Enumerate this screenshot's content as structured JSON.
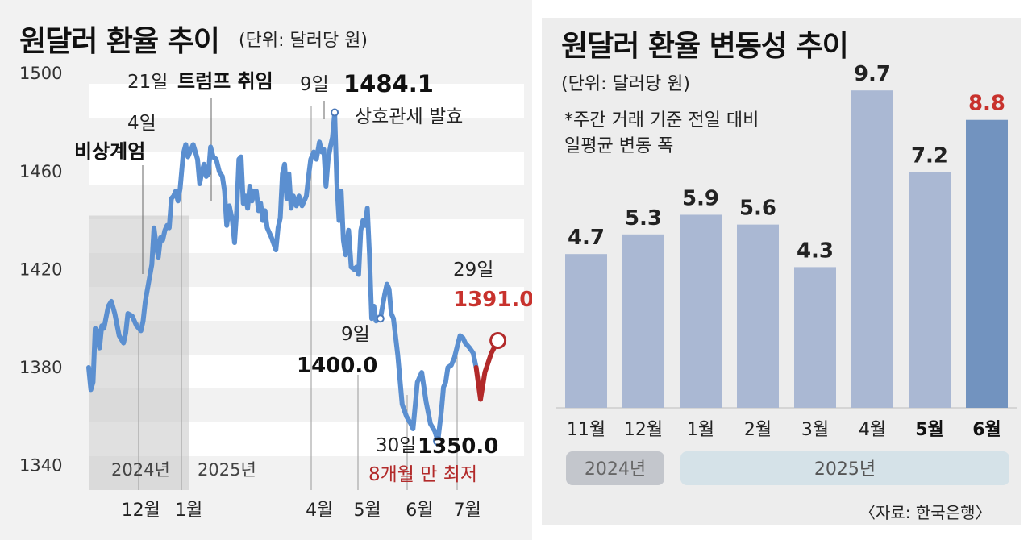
{
  "left": {
    "title": "원달러 환율 추이",
    "unit": "(단위: 달러당 원)"
  },
  "right": {
    "title": "원달러 환율 변동성 추이",
    "unit": "(단위: 달러당 원)",
    "note_line1": "*주간 거래 기준 전일 대비",
    "note_line2": " 일평균 변동 폭",
    "source": "〈자료: 한국은행〉"
  },
  "colors": {
    "line": "#5b8fd0",
    "line_recent": "#b22a2a",
    "accent_red": "#c8322d",
    "bar": "#aab8d3",
    "bar_highlight": "#7293bf",
    "band_dark": "#c3c6cc",
    "band_light": "#d5e2e8"
  },
  "chart_data": [
    {
      "type": "line",
      "title": "원달러 환율 추이",
      "unit": "(단위: 달러당 원)",
      "ylim": [
        1330,
        1505
      ],
      "yticks": [
        1340,
        1380,
        1420,
        1460,
        1500
      ],
      "ytick_labels": [
        "1340",
        "1380",
        "1420",
        "1460",
        "1500"
      ],
      "x_range": [
        0,
        100
      ],
      "month_ticks": [
        {
          "x": 12,
          "label": "12월"
        },
        {
          "x": 23,
          "label": "1월"
        },
        {
          "x": 53,
          "label": "4월"
        },
        {
          "x": 64,
          "label": "5월"
        },
        {
          "x": 76,
          "label": "6월"
        },
        {
          "x": 87,
          "label": "7월"
        }
      ],
      "year_labels": [
        {
          "x": 12,
          "label": "2024년"
        },
        {
          "x": 34,
          "label": "2025년"
        }
      ],
      "shaded_period": [
        0,
        23
      ],
      "series": [
        {
          "name": "원달러 환율",
          "points": [
            [
              0,
              1380
            ],
            [
              0.5,
              1371
            ],
            [
              1,
              1374
            ],
            [
              1.5,
              1396
            ],
            [
              2,
              1395
            ],
            [
              2.5,
              1388
            ],
            [
              3,
              1397
            ],
            [
              3.5,
              1396
            ],
            [
              4.5,
              1405
            ],
            [
              5.2,
              1407
            ],
            [
              6,
              1402
            ],
            [
              7,
              1393
            ],
            [
              8,
              1390
            ],
            [
              8.5,
              1394
            ],
            [
              9,
              1402
            ],
            [
              10,
              1401
            ],
            [
              11,
              1397
            ],
            [
              12,
              1395
            ],
            [
              12.5,
              1399
            ],
            [
              13,
              1407
            ],
            [
              14,
              1417
            ],
            [
              14.5,
              1422
            ],
            [
              15,
              1437
            ],
            [
              15.5,
              1430
            ],
            [
              16,
              1425
            ],
            [
              16.5,
              1433
            ],
            [
              17,
              1432
            ],
            [
              17.5,
              1436
            ],
            [
              18,
              1438
            ],
            [
              18.5,
              1437
            ],
            [
              19,
              1449
            ],
            [
              19.5,
              1450
            ],
            [
              20,
              1452
            ],
            [
              20.5,
              1448
            ],
            [
              21,
              1453
            ],
            [
              21.7,
              1467
            ],
            [
              22.3,
              1471
            ],
            [
              22.8,
              1466
            ],
            [
              23.5,
              1469
            ],
            [
              24,
              1471
            ],
            [
              25,
              1465
            ],
            [
              25.5,
              1455
            ],
            [
              26,
              1460
            ],
            [
              26.5,
              1463
            ],
            [
              27,
              1458
            ],
            [
              27.5,
              1459
            ],
            [
              28,
              1470
            ],
            [
              28.6,
              1466
            ],
            [
              29.3,
              1465
            ],
            [
              30,
              1460
            ],
            [
              30.7,
              1458
            ],
            [
              31.2,
              1452
            ],
            [
              31.7,
              1438
            ],
            [
              32.3,
              1446
            ],
            [
              33,
              1440
            ],
            [
              33.5,
              1431
            ],
            [
              34,
              1444
            ],
            [
              34.5,
              1465
            ],
            [
              35,
              1466
            ],
            [
              35.5,
              1447
            ],
            [
              36,
              1450
            ],
            [
              36.5,
              1445
            ],
            [
              37,
              1454
            ],
            [
              37.5,
              1448
            ],
            [
              38,
              1452
            ],
            [
              38.5,
              1452
            ],
            [
              39,
              1444
            ],
            [
              39.5,
              1447
            ],
            [
              40,
              1440
            ],
            [
              40.5,
              1444
            ],
            [
              41,
              1437
            ],
            [
              42,
              1433
            ],
            [
              43,
              1428
            ],
            [
              43.5,
              1437
            ],
            [
              44,
              1441
            ],
            [
              44.5,
              1459
            ],
            [
              45,
              1463
            ],
            [
              45.5,
              1449
            ],
            [
              46,
              1459
            ],
            [
              46.5,
              1445
            ],
            [
              47,
              1450
            ],
            [
              47.7,
              1446
            ],
            [
              48.3,
              1450
            ],
            [
              49,
              1446
            ],
            [
              49.5,
              1448
            ],
            [
              50,
              1450
            ],
            [
              50.5,
              1458
            ],
            [
              51,
              1465
            ],
            [
              51.7,
              1468
            ],
            [
              52.3,
              1465
            ],
            [
              53,
              1472
            ],
            [
              53.5,
              1468
            ],
            [
              54,
              1469
            ],
            [
              54.5,
              1454
            ],
            [
              55,
              1465
            ],
            [
              55.5,
              1470
            ],
            [
              56,
              1474
            ],
            [
              56.5,
              1484.1
            ],
            [
              57,
              1455
            ],
            [
              57.5,
              1440
            ],
            [
              58,
              1452
            ],
            [
              58.5,
              1432
            ],
            [
              59,
              1426
            ],
            [
              59.7,
              1436
            ],
            [
              60.3,
              1421
            ],
            [
              61,
              1420
            ],
            [
              61.5,
              1421
            ],
            [
              62,
              1418
            ],
            [
              62.5,
              1436
            ],
            [
              63,
              1440
            ],
            [
              63.5,
              1438
            ],
            [
              64,
              1445
            ],
            [
              64.5,
              1426
            ],
            [
              65,
              1400
            ],
            [
              65.5,
              1405
            ],
            [
              66,
              1399
            ],
            [
              67,
              1400
            ],
            [
              68,
              1410
            ],
            [
              68.5,
              1414
            ],
            [
              69,
              1412
            ],
            [
              69.5,
              1402
            ],
            [
              70,
              1400
            ],
            [
              71,
              1385
            ],
            [
              72,
              1365
            ],
            [
              73,
              1360
            ],
            [
              74,
              1357
            ],
            [
              74.5,
              1355
            ],
            [
              75.5,
              1374
            ],
            [
              76.5,
              1378
            ],
            [
              77.5,
              1366
            ],
            [
              78.5,
              1357
            ],
            [
              79.5,
              1354
            ],
            [
              80.2,
              1350
            ],
            [
              81,
              1362
            ],
            [
              81.5,
              1372
            ],
            [
              82,
              1374
            ],
            [
              82.5,
              1380
            ],
            [
              83.3,
              1381
            ],
            [
              84,
              1384
            ],
            [
              84.7,
              1389
            ],
            [
              85.3,
              1393
            ],
            [
              86,
              1392
            ],
            [
              86.5,
              1390
            ],
            [
              87,
              1389
            ],
            [
              87.5,
              1388
            ],
            [
              88.3,
              1386
            ],
            [
              89,
              1380
            ]
          ]
        },
        {
          "name": "최근 구간",
          "points": [
            [
              89,
              1380
            ],
            [
              90,
              1367
            ],
            [
              91,
              1378
            ],
            [
              92.5,
              1386
            ],
            [
              94,
              1391
            ]
          ]
        }
      ],
      "markers": [
        {
          "x": 56.5,
          "y": 1484.1
        },
        {
          "x": 67,
          "y": 1400
        },
        {
          "x": 80.2,
          "y": 1350
        },
        {
          "x": 94,
          "y": 1391
        }
      ],
      "annotations": {
        "inaug_date": "21일",
        "inaug_text": "트럼프 취임",
        "martial_date": "4일",
        "martial_text": "비상계엄",
        "peak_date": "9일",
        "peak_value": "1484.1",
        "peak_text": "상호관세 발효",
        "may_date": "9일",
        "may_value": "1400.0",
        "low_date": "30일",
        "low_value": "1350.0",
        "low_text": "8개월 만 최저",
        "latest_date": "29일",
        "latest_value": "1391.0"
      }
    },
    {
      "type": "bar",
      "title": "원달러 환율 변동성 추이",
      "categories": [
        "11월",
        "12월",
        "1월",
        "2월",
        "3월",
        "4월",
        "5월",
        "6월"
      ],
      "values": [
        4.7,
        5.3,
        5.9,
        5.6,
        4.3,
        9.7,
        7.2,
        8.8
      ],
      "value_labels": [
        "4.7",
        "5.3",
        "5.9",
        "5.6",
        "4.3",
        "9.7",
        "7.2",
        "8.8"
      ],
      "bold_categories": [
        "5월",
        "6월"
      ],
      "highlight_category": "6월",
      "ylim": [
        0,
        10
      ],
      "year_groups": [
        {
          "label": "2024년",
          "start": 0,
          "end": 1
        },
        {
          "label": "2025년",
          "start": 2,
          "end": 7
        }
      ]
    }
  ]
}
